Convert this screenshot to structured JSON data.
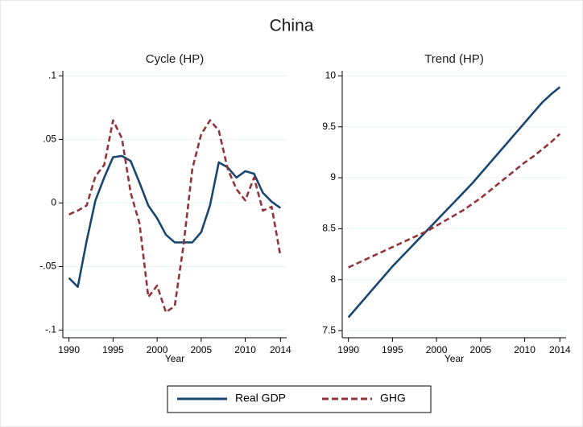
{
  "title": "China",
  "chart_data": [
    {
      "type": "line",
      "title": "Cycle (HP)",
      "xlabel": "Year",
      "x": [
        1990,
        1991,
        1992,
        1993,
        1994,
        1995,
        1996,
        1997,
        1998,
        1999,
        2000,
        2001,
        2002,
        2003,
        2004,
        2005,
        2006,
        2007,
        2008,
        2009,
        2010,
        2011,
        2012,
        2013,
        2014
      ],
      "series": [
        {
          "name": "Real GDP",
          "color": "#1a476f",
          "dash": false,
          "values": [
            -0.059,
            -0.066,
            -0.03,
            0.002,
            0.02,
            0.036,
            0.037,
            0.033,
            0.016,
            -0.002,
            -0.012,
            -0.025,
            -0.031,
            -0.031,
            -0.031,
            -0.023,
            -0.002,
            0.032,
            0.028,
            0.02,
            0.025,
            0.023,
            0.008,
            0.001,
            -0.004
          ]
        },
        {
          "name": "GHG",
          "color": "#90353b",
          "dash": true,
          "values": [
            -0.009,
            -0.006,
            -0.002,
            0.021,
            0.03,
            0.065,
            0.051,
            0.008,
            -0.016,
            -0.074,
            -0.065,
            -0.086,
            -0.081,
            -0.033,
            0.027,
            0.054,
            0.065,
            0.057,
            0.027,
            0.011,
            0.002,
            0.02,
            -0.006,
            -0.003,
            -0.042
          ]
        }
      ],
      "xlim": [
        1989.3,
        2014.7
      ],
      "xticks": [
        1990,
        1995,
        2000,
        2005,
        2010,
        2014
      ],
      "ylim": [
        -0.106,
        0.104
      ],
      "yticks": [
        {
          "value": -0.1,
          "label": "-.1"
        },
        {
          "value": -0.05,
          "label": "-.05"
        },
        0,
        {
          "value": 0.05,
          "label": ".05"
        },
        {
          "value": 0.1,
          "label": ".1"
        }
      ],
      "grid": true
    },
    {
      "type": "line",
      "title": "Trend (HP)",
      "xlabel": "Year",
      "x": [
        1990,
        1991,
        1992,
        1993,
        1994,
        1995,
        1996,
        1997,
        1998,
        1999,
        2000,
        2001,
        2002,
        2003,
        2004,
        2005,
        2006,
        2007,
        2008,
        2009,
        2010,
        2011,
        2012,
        2013,
        2014
      ],
      "series": [
        {
          "color": "#1a476f",
          "dash": false,
          "values": [
            7.63,
            7.73,
            7.83,
            7.93,
            8.03,
            8.13,
            8.22,
            8.31,
            8.4,
            8.49,
            8.58,
            8.67,
            8.76,
            8.85,
            8.94,
            9.04,
            9.14,
            9.24,
            9.34,
            9.44,
            9.54,
            9.64,
            9.74,
            9.82,
            9.89
          ]
        },
        {
          "color": "#90353b",
          "dash": true,
          "values": [
            8.12,
            8.16,
            8.2,
            8.24,
            8.28,
            8.32,
            8.36,
            8.4,
            8.44,
            8.48,
            8.53,
            8.58,
            8.63,
            8.68,
            8.74,
            8.8,
            8.87,
            8.94,
            9.01,
            9.08,
            9.15,
            9.21,
            9.28,
            9.35,
            9.43
          ]
        }
      ],
      "xlim": [
        1989.3,
        2014.7
      ],
      "xticks": [
        1990,
        1995,
        2000,
        2005,
        2010,
        2014
      ],
      "ylim": [
        7.43,
        10.05
      ],
      "yticks": [
        7.5,
        8,
        8.5,
        9,
        9.5,
        10
      ],
      "grid": true
    }
  ]
}
